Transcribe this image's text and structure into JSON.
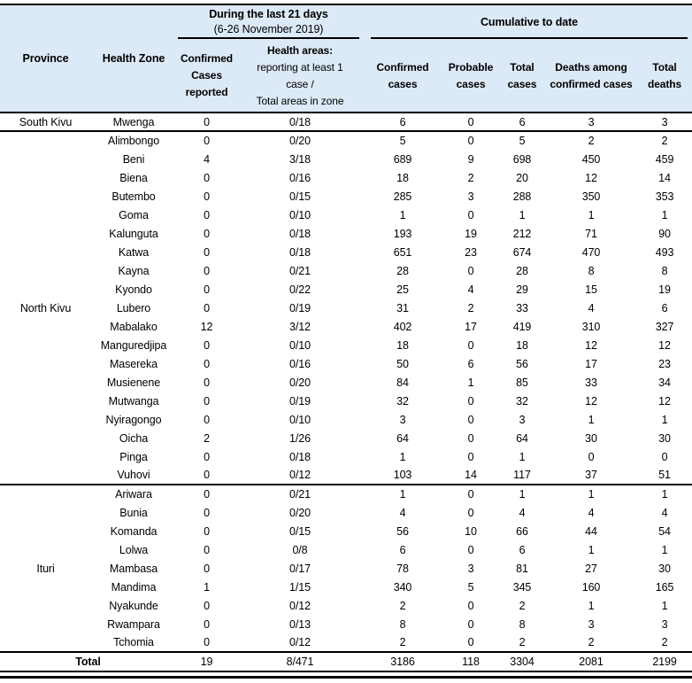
{
  "header": {
    "period_group": {
      "title": "During the last 21 days",
      "subtitle": "(6-26 November 2019)"
    },
    "cumulative_group": {
      "title": "Cumulative to date"
    },
    "columns": {
      "province": "Province",
      "health_zone": "Health Zone",
      "confirmed_reported": "Confirmed Cases reported",
      "health_areas_title": "Health areas:",
      "health_areas_sub1": "reporting at least 1",
      "health_areas_sub2": "case /",
      "health_areas_sub3": "Total areas in zone",
      "confirmed_cases": "Confirmed cases",
      "probable_cases": "Probable cases",
      "total_cases": "Total cases",
      "deaths_confirmed": "Deaths among confirmed cases",
      "total_deaths": "Total deaths"
    }
  },
  "colors": {
    "header_background": "#DCE9F6",
    "rule_color": "#000000"
  },
  "table": {
    "groups": [
      {
        "province": "South Kivu",
        "rows": [
          {
            "zone": "Mwenga",
            "confirmed_21d": 0,
            "areas": "0/18",
            "confirmed": 6,
            "probable": 0,
            "total_cases": 6,
            "deaths_confirmed": 3,
            "total_deaths": 3
          }
        ]
      },
      {
        "province": "North Kivu",
        "rows": [
          {
            "zone": "Alimbongo",
            "confirmed_21d": 0,
            "areas": "0/20",
            "confirmed": 5,
            "probable": 0,
            "total_cases": 5,
            "deaths_confirmed": 2,
            "total_deaths": 2
          },
          {
            "zone": "Beni",
            "confirmed_21d": 4,
            "areas": "3/18",
            "confirmed": 689,
            "probable": 9,
            "total_cases": 698,
            "deaths_confirmed": 450,
            "total_deaths": 459
          },
          {
            "zone": "Biena",
            "confirmed_21d": 0,
            "areas": "0/16",
            "confirmed": 18,
            "probable": 2,
            "total_cases": 20,
            "deaths_confirmed": 12,
            "total_deaths": 14
          },
          {
            "zone": "Butembo",
            "confirmed_21d": 0,
            "areas": "0/15",
            "confirmed": 285,
            "probable": 3,
            "total_cases": 288,
            "deaths_confirmed": 350,
            "total_deaths": 353
          },
          {
            "zone": "Goma",
            "confirmed_21d": 0,
            "areas": "0/10",
            "confirmed": 1,
            "probable": 0,
            "total_cases": 1,
            "deaths_confirmed": 1,
            "total_deaths": 1
          },
          {
            "zone": "Kalunguta",
            "confirmed_21d": 0,
            "areas": "0/18",
            "confirmed": 193,
            "probable": 19,
            "total_cases": 212,
            "deaths_confirmed": 71,
            "total_deaths": 90
          },
          {
            "zone": "Katwa",
            "confirmed_21d": 0,
            "areas": "0/18",
            "confirmed": 651,
            "probable": 23,
            "total_cases": 674,
            "deaths_confirmed": 470,
            "total_deaths": 493
          },
          {
            "zone": "Kayna",
            "confirmed_21d": 0,
            "areas": "0/21",
            "confirmed": 28,
            "probable": 0,
            "total_cases": 28,
            "deaths_confirmed": 8,
            "total_deaths": 8
          },
          {
            "zone": "Kyondo",
            "confirmed_21d": 0,
            "areas": "0/22",
            "confirmed": 25,
            "probable": 4,
            "total_cases": 29,
            "deaths_confirmed": 15,
            "total_deaths": 19
          },
          {
            "zone": "Lubero",
            "confirmed_21d": 0,
            "areas": "0/19",
            "confirmed": 31,
            "probable": 2,
            "total_cases": 33,
            "deaths_confirmed": 4,
            "total_deaths": 6
          },
          {
            "zone": "Mabalako",
            "confirmed_21d": 12,
            "areas": "3/12",
            "confirmed": 402,
            "probable": 17,
            "total_cases": 419,
            "deaths_confirmed": 310,
            "total_deaths": 327
          },
          {
            "zone": "Manguredjipa",
            "confirmed_21d": 0,
            "areas": "0/10",
            "confirmed": 18,
            "probable": 0,
            "total_cases": 18,
            "deaths_confirmed": 12,
            "total_deaths": 12
          },
          {
            "zone": "Masereka",
            "confirmed_21d": 0,
            "areas": "0/16",
            "confirmed": 50,
            "probable": 6,
            "total_cases": 56,
            "deaths_confirmed": 17,
            "total_deaths": 23
          },
          {
            "zone": "Musienene",
            "confirmed_21d": 0,
            "areas": "0/20",
            "confirmed": 84,
            "probable": 1,
            "total_cases": 85,
            "deaths_confirmed": 33,
            "total_deaths": 34
          },
          {
            "zone": "Mutwanga",
            "confirmed_21d": 0,
            "areas": "0/19",
            "confirmed": 32,
            "probable": 0,
            "total_cases": 32,
            "deaths_confirmed": 12,
            "total_deaths": 12
          },
          {
            "zone": "Nyiragongo",
            "confirmed_21d": 0,
            "areas": "0/10",
            "confirmed": 3,
            "probable": 0,
            "total_cases": 3,
            "deaths_confirmed": 1,
            "total_deaths": 1
          },
          {
            "zone": "Oicha",
            "confirmed_21d": 2,
            "areas": "1/26",
            "confirmed": 64,
            "probable": 0,
            "total_cases": 64,
            "deaths_confirmed": 30,
            "total_deaths": 30
          },
          {
            "zone": "Pinga",
            "confirmed_21d": 0,
            "areas": "0/18",
            "confirmed": 1,
            "probable": 0,
            "total_cases": 1,
            "deaths_confirmed": 0,
            "total_deaths": 0
          },
          {
            "zone": "Vuhovi",
            "confirmed_21d": 0,
            "areas": "0/12",
            "confirmed": 103,
            "probable": 14,
            "total_cases": 117,
            "deaths_confirmed": 37,
            "total_deaths": 51
          }
        ]
      },
      {
        "province": "Ituri",
        "rows": [
          {
            "zone": "Ariwara",
            "confirmed_21d": 0,
            "areas": "0/21",
            "confirmed": 1,
            "probable": 0,
            "total_cases": 1,
            "deaths_confirmed": 1,
            "total_deaths": 1
          },
          {
            "zone": "Bunia",
            "confirmed_21d": 0,
            "areas": "0/20",
            "confirmed": 4,
            "probable": 0,
            "total_cases": 4,
            "deaths_confirmed": 4,
            "total_deaths": 4
          },
          {
            "zone": "Komanda",
            "confirmed_21d": 0,
            "areas": "0/15",
            "confirmed": 56,
            "probable": 10,
            "total_cases": 66,
            "deaths_confirmed": 44,
            "total_deaths": 54
          },
          {
            "zone": "Lolwa",
            "confirmed_21d": 0,
            "areas": "0/8",
            "confirmed": 6,
            "probable": 0,
            "total_cases": 6,
            "deaths_confirmed": 1,
            "total_deaths": 1
          },
          {
            "zone": "Mambasa",
            "confirmed_21d": 0,
            "areas": "0/17",
            "confirmed": 78,
            "probable": 3,
            "total_cases": 81,
            "deaths_confirmed": 27,
            "total_deaths": 30
          },
          {
            "zone": "Mandima",
            "confirmed_21d": 1,
            "areas": "1/15",
            "confirmed": 340,
            "probable": 5,
            "total_cases": 345,
            "deaths_confirmed": 160,
            "total_deaths": 165
          },
          {
            "zone": "Nyakunde",
            "confirmed_21d": 0,
            "areas": "0/12",
            "confirmed": 2,
            "probable": 0,
            "total_cases": 2,
            "deaths_confirmed": 1,
            "total_deaths": 1
          },
          {
            "zone": "Rwampara",
            "confirmed_21d": 0,
            "areas": "0/13",
            "confirmed": 8,
            "probable": 0,
            "total_cases": 8,
            "deaths_confirmed": 3,
            "total_deaths": 3
          },
          {
            "zone": "Tchomia",
            "confirmed_21d": 0,
            "areas": "0/12",
            "confirmed": 2,
            "probable": 0,
            "total_cases": 2,
            "deaths_confirmed": 2,
            "total_deaths": 2
          }
        ]
      }
    ],
    "total_row": {
      "label": "Total",
      "confirmed_21d": 19,
      "areas": "8/471",
      "confirmed": 3186,
      "probable": 118,
      "total_cases": 3304,
      "deaths_confirmed": 2081,
      "total_deaths": 2199
    }
  }
}
